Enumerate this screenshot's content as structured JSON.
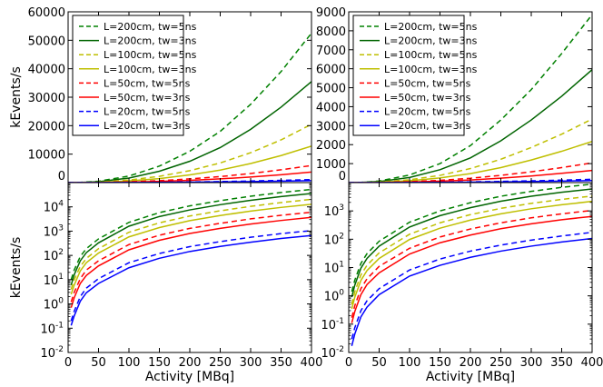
{
  "chart_data": [
    {
      "type": "line",
      "panel": "top-left",
      "ylabel": "kEvents/s",
      "xlabel": "",
      "xlim": [
        0,
        400
      ],
      "ylim": [
        0,
        60000
      ],
      "yscale": "linear",
      "yticks": [
        "0",
        "10000",
        "20000",
        "30000",
        "40000",
        "50000",
        "60000"
      ],
      "legend": "top-left",
      "x": [
        0,
        5,
        10,
        20,
        30,
        50,
        100,
        150,
        200,
        250,
        300,
        350,
        400
      ],
      "series": [
        {
          "name": "L=200cm, tw=5ns",
          "color": "#008000",
          "dash": "dashed",
          "values": [
            0,
            10,
            25,
            90,
            190,
            480,
            2300,
            5800,
            11000,
            18000,
            27500,
            39000,
            52500
          ]
        },
        {
          "name": "L=200cm, tw=3ns",
          "color": "#006400",
          "dash": "solid",
          "values": [
            0,
            6,
            16,
            60,
            130,
            330,
            1600,
            4000,
            7500,
            12300,
            18700,
            26500,
            35500
          ]
        },
        {
          "name": "L=100cm, tw=5ns",
          "color": "#bfbf00",
          "dash": "dashed",
          "values": [
            0,
            4,
            10,
            35,
            75,
            190,
            900,
            2200,
            4200,
            6900,
            10500,
            15000,
            20500
          ]
        },
        {
          "name": "L=100cm, tw=3ns",
          "color": "#bfbf00",
          "dash": "solid",
          "values": [
            0,
            2.5,
            6,
            23,
            50,
            125,
            580,
            1400,
            2700,
            4400,
            6700,
            9500,
            12800
          ]
        },
        {
          "name": "L=50cm, tw=5ns",
          "color": "#ff0000",
          "dash": "dashed",
          "values": [
            0,
            1.2,
            3,
            11,
            25,
            60,
            280,
            680,
            1300,
            2100,
            3200,
            4500,
            6000
          ]
        },
        {
          "name": "L=50cm, tw=3ns",
          "color": "#ff0000",
          "dash": "solid",
          "values": [
            0,
            0.7,
            1.8,
            7,
            15,
            37,
            170,
            420,
            800,
            1300,
            1950,
            2750,
            3700
          ]
        },
        {
          "name": "L=20cm, tw=5ns",
          "color": "#0000ff",
          "dash": "dashed",
          "values": [
            0,
            0.2,
            0.5,
            2,
            4.5,
            11,
            50,
            120,
            230,
            370,
            560,
            790,
            1050
          ]
        },
        {
          "name": "L=20cm, tw=3ns",
          "color": "#0000ff",
          "dash": "solid",
          "values": [
            0,
            0.13,
            0.32,
            1.3,
            2.9,
            7,
            31,
            76,
            145,
            235,
            350,
            500,
            660
          ]
        }
      ]
    },
    {
      "type": "line",
      "panel": "top-right",
      "ylabel": "",
      "xlabel": "",
      "xlim": [
        0,
        400
      ],
      "ylim": [
        0,
        9000
      ],
      "yscale": "linear",
      "yticks": [
        "0",
        "1000",
        "2000",
        "3000",
        "4000",
        "5000",
        "6000",
        "7000",
        "8000",
        "9000"
      ],
      "legend": "top-left",
      "x": [
        0,
        5,
        10,
        20,
        30,
        50,
        100,
        150,
        200,
        250,
        300,
        350,
        400
      ],
      "series": [
        {
          "name": "L=200cm, tw=5ns",
          "color": "#008000",
          "dash": "dashed",
          "values": [
            0,
            1.4,
            3.6,
            14,
            31,
            85,
            400,
            1000,
            1950,
            3300,
            4900,
            6800,
            8850
          ]
        },
        {
          "name": "L=200cm, tw=3ns",
          "color": "#006400",
          "dash": "solid",
          "values": [
            0,
            0.9,
            2.4,
            9.5,
            21,
            57,
            270,
            680,
            1300,
            2200,
            3300,
            4550,
            5950
          ]
        },
        {
          "name": "L=100cm, tw=5ns",
          "color": "#bfbf00",
          "dash": "dashed",
          "values": [
            0,
            0.5,
            1.4,
            5.5,
            12,
            33,
            150,
            380,
            740,
            1230,
            1850,
            2550,
            3350
          ]
        },
        {
          "name": "L=100cm, tw=3ns",
          "color": "#bfbf00",
          "dash": "solid",
          "values": [
            0,
            0.35,
            0.9,
            3.5,
            7.8,
            21,
            98,
            245,
            475,
            790,
            1190,
            1650,
            2170
          ]
        },
        {
          "name": "L=50cm, tw=5ns",
          "color": "#ff0000",
          "dash": "dashed",
          "values": [
            0,
            0.17,
            0.45,
            1.8,
            4,
            11,
            48,
            120,
            230,
            380,
            570,
            790,
            1040
          ]
        },
        {
          "name": "L=50cm, tw=3ns",
          "color": "#ff0000",
          "dash": "solid",
          "values": [
            0,
            0.11,
            0.28,
            1.1,
            2.5,
            6.5,
            30,
            75,
            140,
            235,
            350,
            490,
            640
          ]
        },
        {
          "name": "L=20cm, tw=5ns",
          "color": "#0000ff",
          "dash": "dashed",
          "values": [
            0,
            0.03,
            0.075,
            0.3,
            0.67,
            1.8,
            8.2,
            20,
            38,
            62,
            93,
            130,
            175
          ]
        },
        {
          "name": "L=20cm, tw=3ns",
          "color": "#0000ff",
          "dash": "solid",
          "values": [
            0,
            0.017,
            0.045,
            0.18,
            0.4,
            1.1,
            5,
            12,
            23,
            38,
            57,
            80,
            106
          ]
        }
      ]
    },
    {
      "type": "line",
      "panel": "bottom-left",
      "ylabel": "kEvents/s",
      "xlabel": "Activity [MBq]",
      "xlim": [
        0,
        400
      ],
      "ylim": [
        0.01,
        100000
      ],
      "yscale": "log",
      "xticks": [
        "0",
        "50",
        "100",
        "150",
        "200",
        "250",
        "300",
        "350",
        "400"
      ],
      "same_series_as": "top-left"
    },
    {
      "type": "line",
      "panel": "bottom-right",
      "ylabel": "",
      "xlabel": "Activity [MBq]",
      "xlim": [
        0,
        400
      ],
      "ylim": [
        0.01,
        10000
      ],
      "yscale": "log",
      "xticks": [
        "0",
        "50",
        "100",
        "150",
        "200",
        "250",
        "300",
        "350",
        "400"
      ],
      "same_series_as": "top-right"
    }
  ],
  "tick_label_mantissa": "10"
}
